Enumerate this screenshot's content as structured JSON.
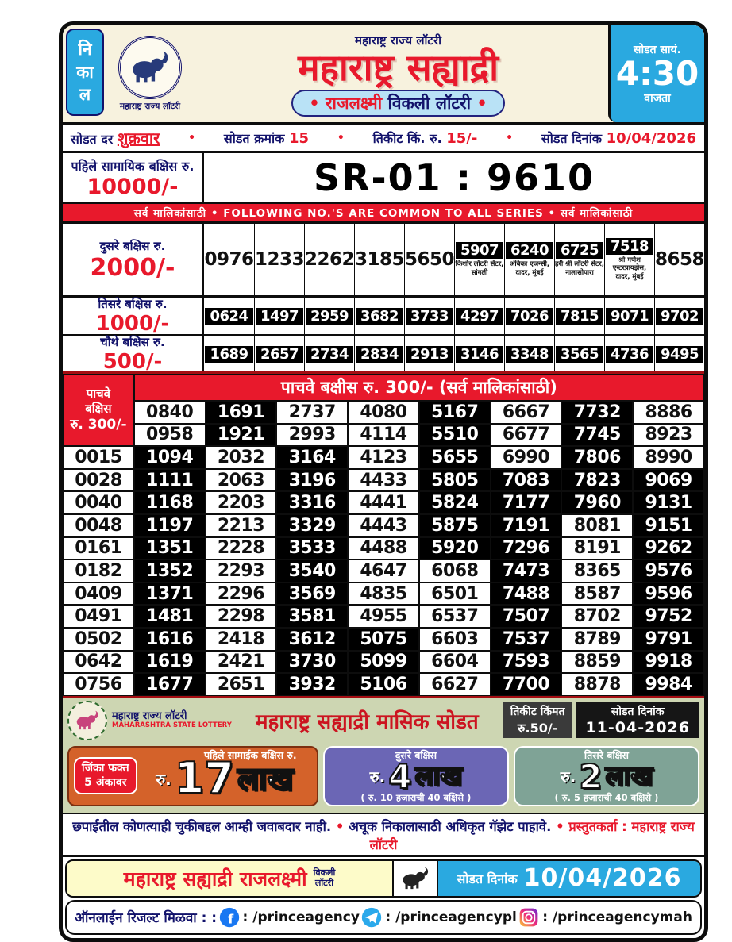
{
  "header": {
    "nikal": [
      "नि",
      "का",
      "ल"
    ],
    "top_title": "महाराष्ट्र राज्य लॉटरी",
    "seal_caption": "महाराष्ट्र राज्य लॉटरी",
    "main_title": "महाराष्ट्र सह्याद्री",
    "weekly": {
      "dot": "•",
      "word1": "राजलक्ष्मी",
      "word2": "विकली लॉटरी"
    },
    "time_box": {
      "line1": "सोडत सायं.",
      "time": "4:30",
      "line3": "वाजता"
    }
  },
  "info_row": {
    "day_label": "सोडत दर",
    "day": "शुक्रवार",
    "bullet": "•",
    "draw_no_label": "सोडत क्रमांक",
    "draw_no": "15",
    "ticket_label": "तिकीट किं. रु.",
    "ticket_price": "15/-",
    "date_label": "सोडत दिनांक",
    "date": "10/04/2026"
  },
  "first_prize": {
    "label": "पहिले सामायिक बक्षिस रु.",
    "amount": "10000/-",
    "number": "SR-01 : 9610"
  },
  "common_band": "सर्व मालिकांसाठी  •  FOLLOWING NO.'S ARE COMMON TO ALL SERIES  •  सर्व मालिकांसाठी",
  "second_prize": {
    "label": "दुसरे बक्षिस रु.",
    "amount": "2000/-",
    "cells": [
      {
        "n": "0976"
      },
      {
        "n": "1233"
      },
      {
        "n": "2262"
      },
      {
        "n": "3185"
      },
      {
        "n": "5650"
      },
      {
        "n": "5907",
        "boxed": true,
        "agent": "किशोर लॉटरी सेंटर, सांगली"
      },
      {
        "n": "6240",
        "boxed": true,
        "agent": "अंबिका एजन्सी, दादर, मुंबई"
      },
      {
        "n": "6725",
        "boxed": true,
        "agent": "हरी श्री लॉटरी सेटर, नालासोपारा"
      },
      {
        "n": "7518",
        "boxed": true,
        "agent": "श्री गणेश एन्टरप्रायझेस, दादर, मुंबई"
      },
      {
        "n": "8658"
      }
    ]
  },
  "third_prize": {
    "label": "तिसरे बक्षिस रु.",
    "amount": "1000/-",
    "numbers": [
      "0624",
      "1497",
      "2959",
      "3682",
      "3733",
      "4297",
      "7026",
      "7815",
      "9071",
      "9702"
    ]
  },
  "fourth_prize": {
    "label": "चौथे बक्षिस रु.",
    "amount": "500/-",
    "numbers": [
      "1689",
      "2657",
      "2734",
      "2834",
      "2913",
      "3146",
      "3348",
      "3565",
      "4736",
      "9495"
    ]
  },
  "fifth_prize": {
    "side_lines": [
      "पाचवे",
      "बक्षिस",
      "रु. 300/-"
    ],
    "header": "पाचवे बक्षीस रु. 300/- (सर्व मालिकांसाठी)",
    "rows": [
      [
        {
          "n": "0840",
          "h": 0
        },
        {
          "n": "1691",
          "h": 1
        },
        {
          "n": "2737",
          "h": 0
        },
        {
          "n": "4080",
          "h": 0
        },
        {
          "n": "5167",
          "h": 1
        },
        {
          "n": "6667",
          "h": 0
        },
        {
          "n": "7732",
          "h": 1
        },
        {
          "n": "8886",
          "h": 0
        }
      ],
      [
        {
          "n": "0958",
          "h": 0
        },
        {
          "n": "1921",
          "h": 1
        },
        {
          "n": "2993",
          "h": 0
        },
        {
          "n": "4114",
          "h": 0
        },
        {
          "n": "5510",
          "h": 1
        },
        {
          "n": "6677",
          "h": 0
        },
        {
          "n": "7745",
          "h": 1
        },
        {
          "n": "8923",
          "h": 0
        }
      ],
      [
        {
          "n": "0015",
          "h": 0
        },
        {
          "n": "1094",
          "h": 1
        },
        {
          "n": "2032",
          "h": 0
        },
        {
          "n": "3164",
          "h": 1
        },
        {
          "n": "4123",
          "h": 0
        },
        {
          "n": "5655",
          "h": 1
        },
        {
          "n": "6990",
          "h": 0
        },
        {
          "n": "7806",
          "h": 1
        },
        {
          "n": "8990",
          "h": 0
        }
      ],
      [
        {
          "n": "0028",
          "h": 0
        },
        {
          "n": "1111",
          "h": 1
        },
        {
          "n": "2063",
          "h": 0
        },
        {
          "n": "3196",
          "h": 1
        },
        {
          "n": "4433",
          "h": 0
        },
        {
          "n": "5805",
          "h": 1
        },
        {
          "n": "7083",
          "h": 1
        },
        {
          "n": "7823",
          "h": 1
        },
        {
          "n": "9069",
          "h": 1
        }
      ],
      [
        {
          "n": "0040",
          "h": 0
        },
        {
          "n": "1168",
          "h": 1
        },
        {
          "n": "2203",
          "h": 0
        },
        {
          "n": "3316",
          "h": 1
        },
        {
          "n": "4441",
          "h": 0
        },
        {
          "n": "5824",
          "h": 1
        },
        {
          "n": "7177",
          "h": 1
        },
        {
          "n": "7960",
          "h": 1
        },
        {
          "n": "9131",
          "h": 1
        }
      ],
      [
        {
          "n": "0048",
          "h": 0
        },
        {
          "n": "1197",
          "h": 1
        },
        {
          "n": "2213",
          "h": 0
        },
        {
          "n": "3329",
          "h": 1
        },
        {
          "n": "4443",
          "h": 0
        },
        {
          "n": "5875",
          "h": 1
        },
        {
          "n": "7191",
          "h": 1
        },
        {
          "n": "8081",
          "h": 0
        },
        {
          "n": "9151",
          "h": 1
        }
      ],
      [
        {
          "n": "0161",
          "h": 0
        },
        {
          "n": "1351",
          "h": 1
        },
        {
          "n": "2228",
          "h": 0
        },
        {
          "n": "3533",
          "h": 1
        },
        {
          "n": "4488",
          "h": 0
        },
        {
          "n": "5920",
          "h": 1
        },
        {
          "n": "7296",
          "h": 1
        },
        {
          "n": "8191",
          "h": 0
        },
        {
          "n": "9262",
          "h": 1
        }
      ],
      [
        {
          "n": "0182",
          "h": 0
        },
        {
          "n": "1352",
          "h": 1
        },
        {
          "n": "2293",
          "h": 0
        },
        {
          "n": "3540",
          "h": 1
        },
        {
          "n": "4647",
          "h": 0
        },
        {
          "n": "6068",
          "h": 0
        },
        {
          "n": "7473",
          "h": 1
        },
        {
          "n": "8365",
          "h": 0
        },
        {
          "n": "9576",
          "h": 1
        }
      ],
      [
        {
          "n": "0409",
          "h": 0
        },
        {
          "n": "1371",
          "h": 1
        },
        {
          "n": "2296",
          "h": 0
        },
        {
          "n": "3569",
          "h": 1
        },
        {
          "n": "4835",
          "h": 0
        },
        {
          "n": "6501",
          "h": 0
        },
        {
          "n": "7488",
          "h": 1
        },
        {
          "n": "8587",
          "h": 0
        },
        {
          "n": "9596",
          "h": 1
        }
      ],
      [
        {
          "n": "0491",
          "h": 0
        },
        {
          "n": "1481",
          "h": 1
        },
        {
          "n": "2298",
          "h": 0
        },
        {
          "n": "3581",
          "h": 1
        },
        {
          "n": "4955",
          "h": 0
        },
        {
          "n": "6537",
          "h": 0
        },
        {
          "n": "7507",
          "h": 1
        },
        {
          "n": "8702",
          "h": 0
        },
        {
          "n": "9752",
          "h": 1
        }
      ],
      [
        {
          "n": "0502",
          "h": 0
        },
        {
          "n": "1616",
          "h": 1
        },
        {
          "n": "2418",
          "h": 0
        },
        {
          "n": "3612",
          "h": 1
        },
        {
          "n": "5075",
          "h": 1
        },
        {
          "n": "6603",
          "h": 0
        },
        {
          "n": "7537",
          "h": 1
        },
        {
          "n": "8789",
          "h": 0
        },
        {
          "n": "9791",
          "h": 1
        }
      ],
      [
        {
          "n": "0642",
          "h": 0
        },
        {
          "n": "1619",
          "h": 1
        },
        {
          "n": "2421",
          "h": 0
        },
        {
          "n": "3730",
          "h": 1
        },
        {
          "n": "5099",
          "h": 1
        },
        {
          "n": "6604",
          "h": 0
        },
        {
          "n": "7593",
          "h": 1
        },
        {
          "n": "8859",
          "h": 0
        },
        {
          "n": "9918",
          "h": 1
        }
      ],
      [
        {
          "n": "0756",
          "h": 0
        },
        {
          "n": "1677",
          "h": 1
        },
        {
          "n": "2651",
          "h": 0
        },
        {
          "n": "3932",
          "h": 1
        },
        {
          "n": "5106",
          "h": 1
        },
        {
          "n": "6627",
          "h": 0
        },
        {
          "n": "7700",
          "h": 1
        },
        {
          "n": "8878",
          "h": 0
        },
        {
          "n": "9984",
          "h": 1
        }
      ]
    ]
  },
  "monthly": {
    "seal_caption1": "महाराष्ट्र राज्य लॉटरी",
    "seal_caption2": "MAHARASHTRA STATE LOTTERY",
    "title": "महाराष्ट्र सह्याद्री मासिक सोडत",
    "price_label": "तिकीट किंमत",
    "price": "रु.50/-",
    "date_label": "सोडत दिनांक",
    "date": "11-04-2026",
    "first": {
      "pill_line1": "जिंका फक्त",
      "pill_line2": "5 अंकावर",
      "head": "पहिले सामाईक बक्षिस रु.",
      "rs": "रु.",
      "amount": "17",
      "unit": "लाख"
    },
    "second": {
      "head": "दुसरे बक्षिस",
      "rs": "रु.",
      "amount": "4",
      "unit": "लाख",
      "note": "( रु. 10 हजाराची 40 बक्षिसे )"
    },
    "third": {
      "head": "तिसरे बक्षिस",
      "rs": "रु.",
      "amount": "2",
      "unit": "लाख",
      "note": "( रु. 5 हजाराची 40 बक्षिसे )"
    }
  },
  "disclaimer": {
    "part1": "छपाईतील कोणत्याही चुकीबद्दल आम्ही जवाबदार नाही.",
    "bullet": "•",
    "part2": "अचूक निकालासाठी अधिकृत गॅझेट पाहावे.",
    "part3": "प्रस्तुतकर्ता : महाराष्ट्र राज्य लॉटरी"
  },
  "footer": {
    "brand": "महाराष्ट्र सह्याद्री राजलक्ष्मी",
    "weekly_line1": "विकली",
    "weekly_line2": "लॉटरी",
    "date_label": "सोडत दिनांक",
    "date": "10/04/2026",
    "online_label": "ऑनलाईन रिजल्ट मिळवा : :",
    "socials": [
      {
        "icon": "facebook",
        "handle": ": /princeagency"
      },
      {
        "icon": "telegram",
        "handle": ": /princeagencypl"
      },
      {
        "icon": "instagram",
        "handle": ": /princeagencymah"
      }
    ]
  },
  "colors": {
    "accent_red": "#e8192c",
    "sky_blue": "#2aa9e0",
    "navy": "#12126b",
    "cream": "#f7f2de",
    "sage": "#cdd6b2",
    "orange": "#d4622a",
    "purple": "#6b66b5",
    "teal": "#7fa396",
    "footer_yellow": "#fdfbc9"
  }
}
